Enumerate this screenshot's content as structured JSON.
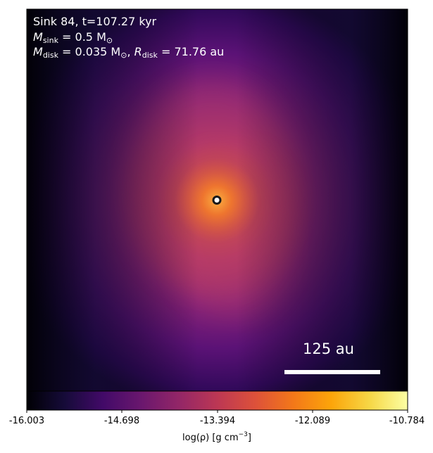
{
  "header": {
    "line1": "Sink 84, t=107.27 kyr",
    "msink_symbol": "M",
    "msink_sub": "sink",
    "msink_value": " = 0.5 M",
    "msink_unit_sub": "⊙",
    "mdisk_symbol": "M",
    "mdisk_sub": "disk",
    "mdisk_value": " = 0.035 M",
    "mdisk_unit_sub": "⊙",
    "rdisk_sep": ", ",
    "rdisk_symbol": "R",
    "rdisk_sub": "disk",
    "rdisk_value": " = 71.76 au"
  },
  "scale_bar": {
    "label": "125 au"
  },
  "colorbar": {
    "colormap": "inferno",
    "ticks": [
      "-16.003",
      "-14.698",
      "-13.394",
      "-12.089",
      "-10.784"
    ],
    "label_prefix": "log(ρ) [g cm",
    "label_exp": "−3",
    "label_suffix": "]"
  },
  "colors": {
    "text": "#ffffff",
    "sink_marker_fill": "#ffffff",
    "sink_marker_stroke": "#222222"
  }
}
